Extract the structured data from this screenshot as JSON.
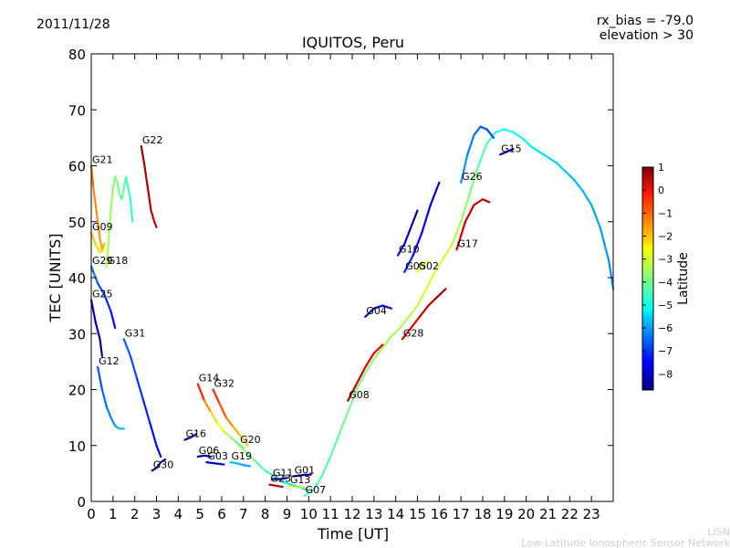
{
  "header": {
    "date": "2011/11/28",
    "rx_bias": "rx_bias = -79.0",
    "elevation": "elevation > 30"
  },
  "footer": {
    "brand": "LISN",
    "network": "Low-Latitude Ionospheric Sensor Network"
  },
  "chart_data": {
    "type": "line",
    "title": "IQUITOS, Peru",
    "xlabel": "Time [UT]",
    "ylabel": "TEC [UNITS]",
    "xlim": [
      0,
      24
    ],
    "ylim": [
      0,
      80
    ],
    "xticks": [
      0,
      1,
      2,
      3,
      4,
      5,
      6,
      7,
      8,
      9,
      10,
      11,
      12,
      13,
      14,
      15,
      16,
      17,
      18,
      19,
      20,
      21,
      22,
      23
    ],
    "yticks": [
      0,
      10,
      20,
      30,
      40,
      50,
      60,
      70,
      80
    ],
    "grid": false,
    "colorbar": {
      "label": "Latitude",
      "range": [
        -8.7,
        1.0
      ],
      "ticks": [
        1,
        0,
        -1,
        -2,
        -3,
        -4,
        -5,
        -6,
        -7,
        -8
      ],
      "colormap": "jet"
    },
    "series": [
      {
        "name": "G22",
        "points": [
          [
            2.3,
            63.5
          ],
          [
            2.45,
            60
          ],
          [
            2.6,
            56
          ],
          [
            2.75,
            52
          ],
          [
            2.9,
            50
          ],
          [
            3.0,
            49
          ]
        ],
        "lat": [
          0.8,
          0.7,
          0.6,
          0.5,
          0.4,
          0.3
        ]
      },
      {
        "name": "G21",
        "points": [
          [
            0.0,
            60
          ],
          [
            0.1,
            56
          ],
          [
            0.2,
            53
          ],
          [
            0.3,
            50
          ],
          [
            0.4,
            47
          ],
          [
            0.5,
            45
          ],
          [
            0.6,
            46
          ]
        ],
        "lat": [
          -1.2,
          -1.4,
          -1.5,
          -1.6,
          -1.7,
          -1.8,
          -1.9
        ]
      },
      {
        "name": "G18",
        "points": [
          [
            0.7,
            42
          ],
          [
            0.8,
            47
          ],
          [
            0.9,
            52
          ],
          [
            1.0,
            56
          ],
          [
            1.1,
            58
          ],
          [
            1.2,
            57
          ],
          [
            1.3,
            55
          ],
          [
            1.4,
            54
          ],
          [
            1.5,
            56
          ],
          [
            1.6,
            58
          ],
          [
            1.7,
            56
          ],
          [
            1.8,
            54
          ],
          [
            1.9,
            50
          ]
        ],
        "lat": [
          -3.4,
          -3.5,
          -3.6,
          -3.7,
          -3.8,
          -3.9,
          -4.0,
          -4.1,
          -4.2,
          -4.3,
          -4.4,
          -4.5,
          -4.6
        ]
      },
      {
        "name": "G09",
        "points": [
          [
            0.0,
            48
          ],
          [
            0.2,
            46
          ],
          [
            0.4,
            44.5
          ],
          [
            0.6,
            45
          ]
        ],
        "lat": [
          -2.0,
          -2.2,
          -2.3,
          -2.4
        ]
      },
      {
        "name": "G29",
        "points": [
          [
            0.0,
            42
          ],
          [
            0.3,
            39
          ],
          [
            0.6,
            37
          ],
          [
            0.9,
            34
          ],
          [
            1.1,
            31
          ]
        ],
        "lat": [
          -6.3,
          -6.6,
          -7.0,
          -7.3,
          -7.6
        ]
      },
      {
        "name": "G25",
        "points": [
          [
            0.0,
            36
          ],
          [
            0.2,
            32
          ],
          [
            0.4,
            29
          ],
          [
            0.5,
            26
          ]
        ],
        "lat": [
          -8.0,
          -8.2,
          -8.4,
          -8.6
        ]
      },
      {
        "name": "G12",
        "points": [
          [
            0.3,
            24
          ],
          [
            0.5,
            20
          ],
          [
            0.7,
            17
          ],
          [
            0.9,
            15
          ],
          [
            1.1,
            13.5
          ],
          [
            1.3,
            13
          ],
          [
            1.5,
            13
          ]
        ],
        "lat": [
          -6.8,
          -6.6,
          -6.4,
          -6.2,
          -6.0,
          -5.8,
          -5.6
        ]
      },
      {
        "name": "G31",
        "points": [
          [
            1.5,
            29
          ],
          [
            1.8,
            26
          ],
          [
            2.1,
            22
          ],
          [
            2.4,
            18
          ],
          [
            2.7,
            14
          ],
          [
            3.0,
            10
          ],
          [
            3.2,
            8
          ]
        ],
        "lat": [
          -6.5,
          -6.7,
          -6.9,
          -7.1,
          -7.3,
          -7.5,
          -7.7
        ]
      },
      {
        "name": "G30",
        "points": [
          [
            2.8,
            5.5
          ],
          [
            3.0,
            6
          ],
          [
            3.2,
            7
          ],
          [
            3.4,
            7.5
          ]
        ],
        "lat": [
          -8.4,
          -8.3,
          -8.2,
          -8.1
        ]
      },
      {
        "name": "G14",
        "points": [
          [
            4.9,
            21
          ],
          [
            5.2,
            18
          ],
          [
            5.5,
            16
          ],
          [
            5.8,
            14
          ],
          [
            6.1,
            12.5
          ],
          [
            6.4,
            11.5
          ],
          [
            6.7,
            10.5
          ],
          [
            7.0,
            9.5
          ]
        ],
        "lat": [
          0.0,
          -1.0,
          -2.0,
          -2.5,
          -3.0,
          -3.5,
          -4.0,
          -4.5
        ]
      },
      {
        "name": "G32",
        "points": [
          [
            5.6,
            20
          ],
          [
            5.9,
            17.5
          ],
          [
            6.2,
            15
          ],
          [
            6.5,
            13.5
          ],
          [
            6.8,
            12
          ],
          [
            7.2,
            10
          ]
        ],
        "lat": [
          -0.5,
          -0.8,
          -1.2,
          -1.6,
          -2.0,
          -2.4
        ]
      },
      {
        "name": "G16",
        "points": [
          [
            4.3,
            11
          ],
          [
            4.6,
            11.5
          ],
          [
            4.8,
            12
          ]
        ],
        "lat": [
          -8.5,
          -8.4,
          -8.3
        ]
      },
      {
        "name": "G06",
        "points": [
          [
            4.9,
            8
          ],
          [
            5.2,
            8.2
          ],
          [
            5.5,
            8.0
          ]
        ],
        "lat": [
          -8.5,
          -8.4,
          -8.3
        ]
      },
      {
        "name": "G03",
        "points": [
          [
            5.3,
            7
          ],
          [
            5.7,
            6.8
          ],
          [
            6.1,
            6.6
          ]
        ],
        "lat": [
          -8.0,
          -8.1,
          -8.2
        ]
      },
      {
        "name": "G19",
        "points": [
          [
            6.4,
            7
          ],
          [
            6.7,
            6.8
          ],
          [
            7.0,
            6.5
          ],
          [
            7.3,
            6.3
          ]
        ],
        "lat": [
          -5.5,
          -5.7,
          -5.9,
          -6.1
        ]
      },
      {
        "name": "G20",
        "points": [
          [
            6.8,
            10
          ],
          [
            7.2,
            8.5
          ],
          [
            7.6,
            7
          ],
          [
            8.0,
            5.5
          ],
          [
            8.4,
            4.5
          ],
          [
            8.8,
            3.5
          ],
          [
            9.2,
            3
          ],
          [
            9.6,
            2.5
          ],
          [
            10.0,
            2
          ]
        ],
        "lat": [
          -3.5,
          -3.8,
          -4.1,
          -4.4,
          -4.7,
          -5.0,
          -5.3,
          -5.6,
          -5.9
        ]
      },
      {
        "name": "G11",
        "points": [
          [
            8.3,
            4
          ],
          [
            8.7,
            4
          ],
          [
            9.0,
            4.2
          ]
        ],
        "lat": [
          -8.3,
          -8.4,
          -8.5
        ]
      },
      {
        "name": "G01",
        "points": [
          [
            9.3,
            4.5
          ],
          [
            9.7,
            4.7
          ],
          [
            10.1,
            4.8
          ]
        ],
        "lat": [
          -8.5,
          -8.5,
          -8.5
        ]
      },
      {
        "name": "G23",
        "points": [
          [
            8.2,
            3
          ],
          [
            8.5,
            2.8
          ],
          [
            8.8,
            2.6
          ]
        ],
        "lat": [
          0.4,
          0.5,
          0.6
        ]
      },
      {
        "name": "G13",
        "points": [
          [
            9.1,
            2.8
          ],
          [
            9.5,
            2.5
          ],
          [
            9.9,
            2.4
          ]
        ],
        "lat": [
          -3.2,
          -3.3,
          -3.4
        ]
      },
      {
        "name": "G07",
        "points": [
          [
            9.8,
            1
          ],
          [
            10.2,
            2
          ],
          [
            10.6,
            4.5
          ],
          [
            11.0,
            8
          ],
          [
            11.4,
            12
          ],
          [
            11.8,
            16
          ],
          [
            12.2,
            20
          ],
          [
            12.6,
            23
          ],
          [
            13.0,
            25.5
          ],
          [
            13.4,
            27.5
          ],
          [
            13.8,
            29.5
          ],
          [
            14.2,
            31
          ],
          [
            14.6,
            33
          ],
          [
            15.0,
            35
          ],
          [
            15.4,
            38
          ],
          [
            15.8,
            41
          ],
          [
            16.2,
            43.5
          ],
          [
            16.6,
            46
          ],
          [
            17.0,
            50
          ],
          [
            17.4,
            55
          ],
          [
            17.8,
            60
          ],
          [
            18.2,
            64
          ],
          [
            18.6,
            66
          ],
          [
            19.0,
            66.5
          ],
          [
            19.4,
            66
          ],
          [
            19.8,
            65
          ],
          [
            20.2,
            63.5
          ],
          [
            20.6,
            62.5
          ],
          [
            21.0,
            61.5
          ],
          [
            21.4,
            60.5
          ],
          [
            21.8,
            59
          ],
          [
            22.2,
            57.5
          ],
          [
            22.6,
            55.5
          ],
          [
            23.0,
            53
          ],
          [
            23.4,
            49
          ],
          [
            23.8,
            43
          ],
          [
            24.0,
            38
          ]
        ],
        "lat": [
          -4.5,
          -4.4,
          -4.3,
          -4.2,
          -4.1,
          -4.0,
          -3.9,
          -3.8,
          -3.7,
          -3.6,
          -3.5,
          -3.4,
          -3.3,
          -3.2,
          -3.1,
          -3.0,
          -3.0,
          -3.2,
          -3.5,
          -3.8,
          -4.1,
          -4.4,
          -4.6,
          -4.8,
          -5.0,
          -5.1,
          -5.2,
          -5.3,
          -5.4,
          -5.5,
          -5.6,
          -5.7,
          -5.8,
          -5.9,
          -6.0,
          -6.1,
          -6.2
        ]
      },
      {
        "name": "G08",
        "points": [
          [
            11.8,
            18
          ],
          [
            12.2,
            21
          ],
          [
            12.6,
            24
          ],
          [
            13.0,
            26.5
          ],
          [
            13.4,
            28
          ]
        ],
        "lat": [
          0.6,
          0.4,
          0.2,
          0.0,
          -0.2
        ]
      },
      {
        "name": "G04",
        "points": [
          [
            12.6,
            33
          ],
          [
            13.0,
            34.5
          ],
          [
            13.4,
            35
          ],
          [
            13.8,
            34.5
          ]
        ],
        "lat": [
          -8.0,
          -7.8,
          -7.6,
          -7.4
        ]
      },
      {
        "name": "G28",
        "points": [
          [
            14.3,
            29
          ],
          [
            14.7,
            31
          ],
          [
            15.1,
            33
          ],
          [
            15.5,
            35
          ],
          [
            15.9,
            36.5
          ],
          [
            16.3,
            38
          ]
        ],
        "lat": [
          0.0,
          0.2,
          0.4,
          0.5,
          0.6,
          0.7
        ]
      },
      {
        "name": "G10",
        "points": [
          [
            14.1,
            44
          ],
          [
            14.4,
            46
          ],
          [
            14.7,
            49
          ],
          [
            15.0,
            52
          ]
        ],
        "lat": [
          -8.0,
          -8.1,
          -8.2,
          -8.3
        ]
      },
      {
        "name": "G02",
        "points": [
          [
            15.0,
            41
          ],
          [
            15.3,
            42.5
          ],
          [
            15.5,
            43
          ]
        ],
        "lat": [
          -2.6,
          -2.8,
          -3.0
        ]
      },
      {
        "name": "G05",
        "points": [
          [
            14.4,
            41
          ],
          [
            14.8,
            44
          ],
          [
            15.2,
            48
          ],
          [
            15.6,
            53
          ],
          [
            16.0,
            57
          ]
        ],
        "lat": [
          -7.0,
          -7.3,
          -7.6,
          -7.9,
          -8.2
        ]
      },
      {
        "name": "G17",
        "points": [
          [
            16.8,
            45
          ],
          [
            17.2,
            50
          ],
          [
            17.6,
            53
          ],
          [
            18.0,
            54
          ],
          [
            18.3,
            53.5
          ]
        ],
        "lat": [
          0.2,
          0.3,
          0.4,
          0.5,
          0.6
        ]
      },
      {
        "name": "G26",
        "points": [
          [
            17.0,
            57
          ],
          [
            17.3,
            62
          ],
          [
            17.6,
            65.5
          ],
          [
            17.9,
            67
          ],
          [
            18.2,
            66.5
          ],
          [
            18.5,
            65
          ]
        ],
        "lat": [
          -6.0,
          -6.2,
          -6.4,
          -6.6,
          -6.8,
          -7.0
        ]
      },
      {
        "name": "G15",
        "points": [
          [
            18.8,
            62
          ],
          [
            19.1,
            62.5
          ],
          [
            19.4,
            63
          ]
        ],
        "lat": [
          -8.1,
          -8.2,
          -8.3
        ]
      }
    ]
  }
}
